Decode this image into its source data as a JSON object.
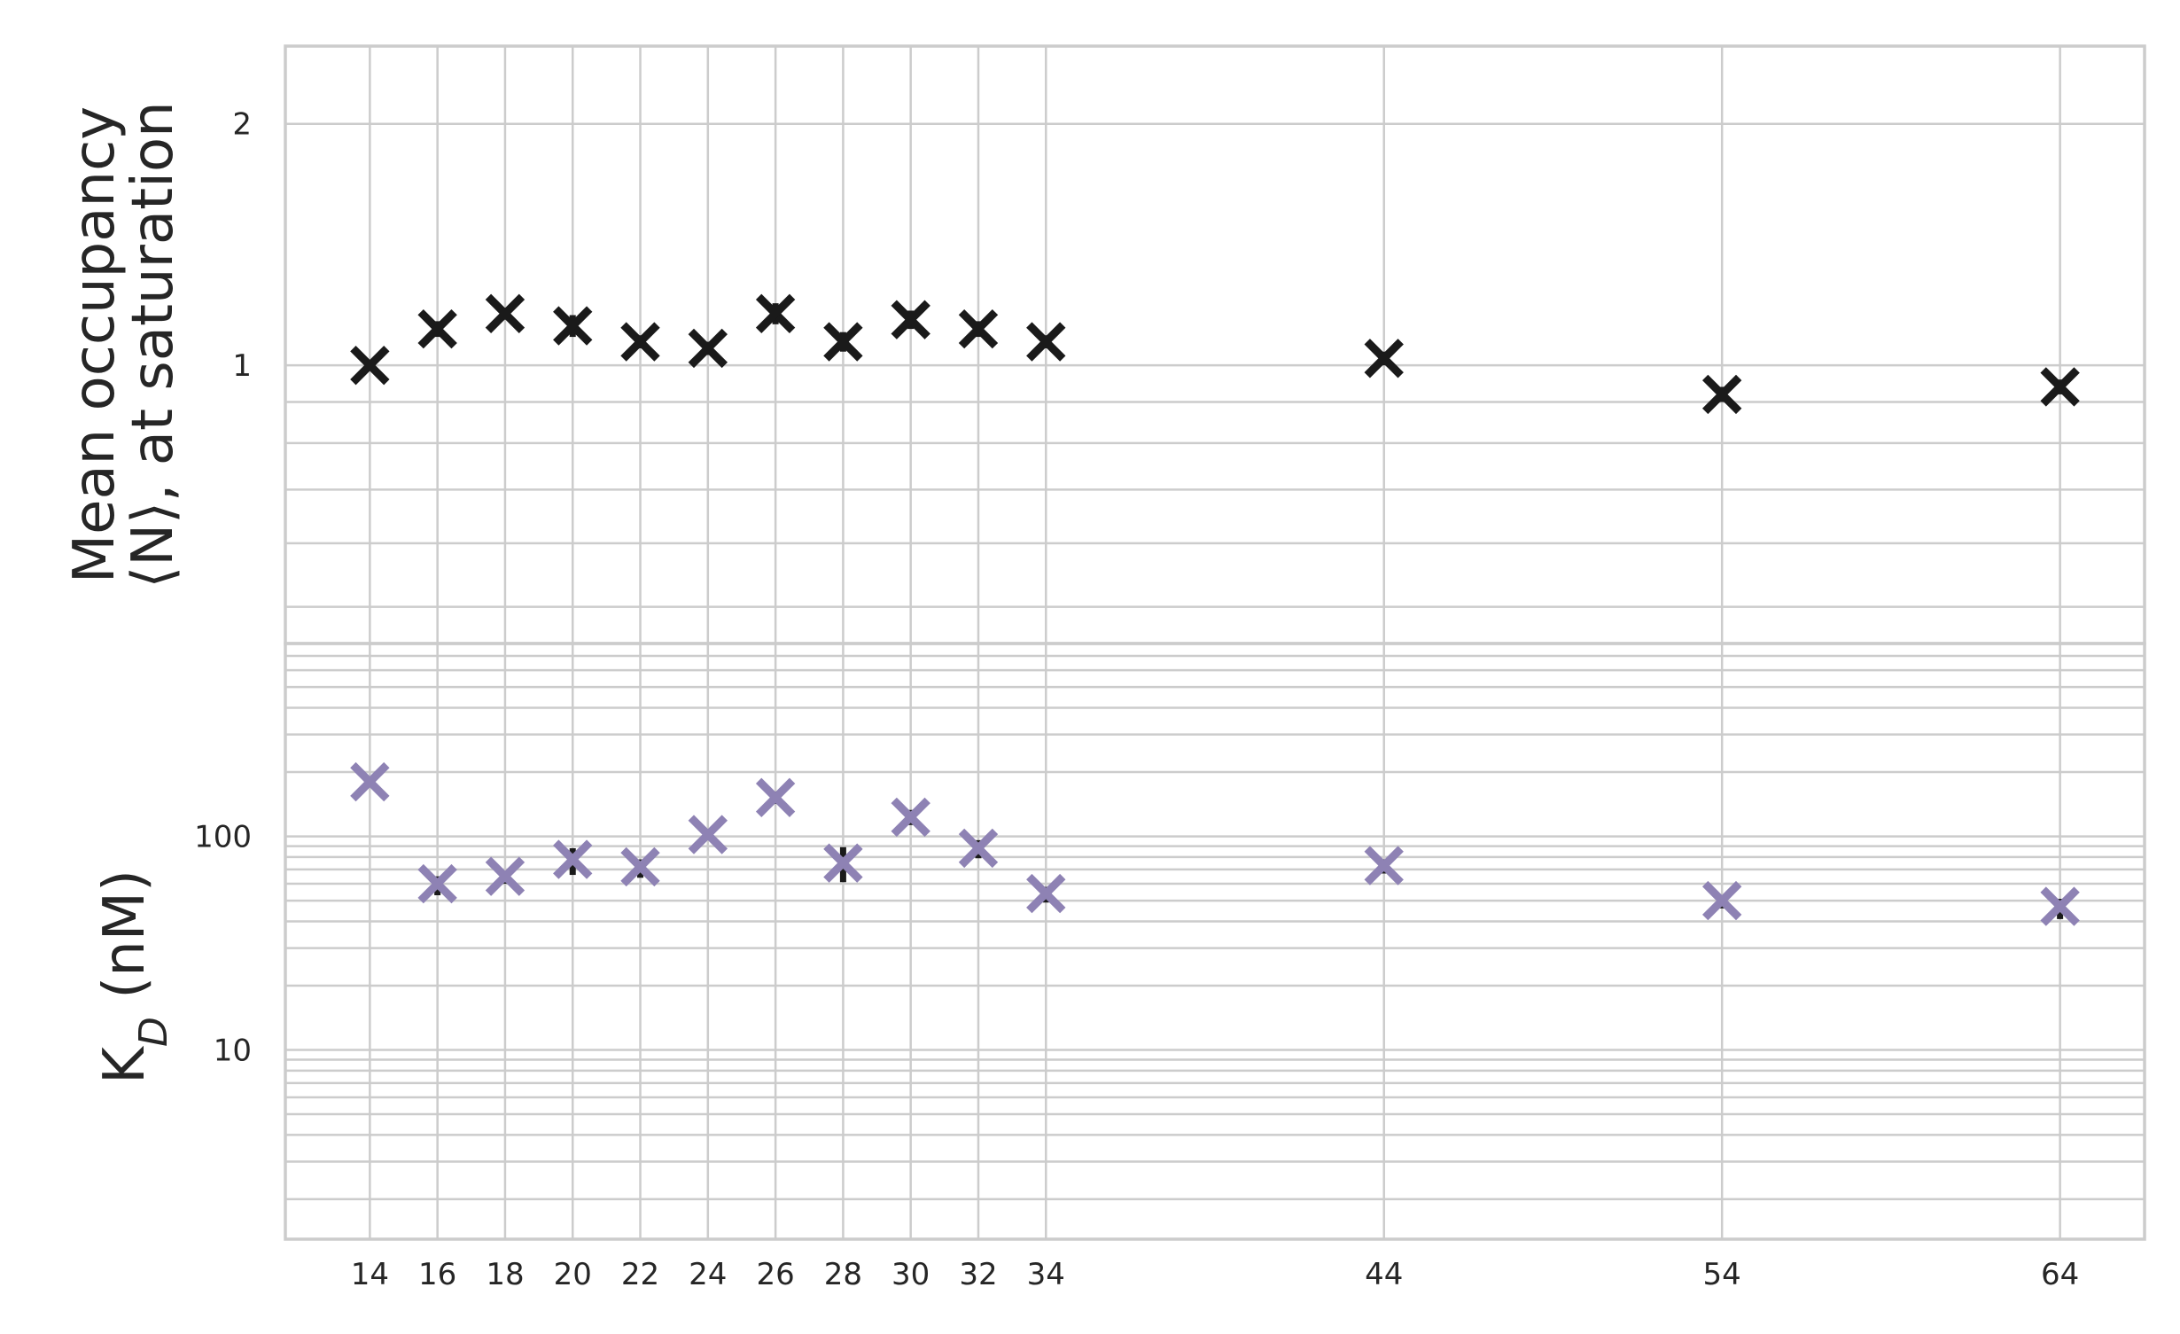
{
  "chart_data": [
    {
      "type": "scatter",
      "panel": "top",
      "ylabel_lines": [
        "Mean occupancy",
        "⟨N⟩, at saturation"
      ],
      "yscale": "log",
      "ylim": [
        0.45,
        2.5
      ],
      "yticks": [
        1,
        2
      ],
      "ytick_labels": [
        "1",
        "2"
      ],
      "grid": true,
      "marker": "x",
      "color": "#1a1a1a",
      "x": [
        14,
        16,
        18,
        20,
        22,
        24,
        26,
        28,
        30,
        32,
        34,
        44,
        54,
        64
      ],
      "y": [
        1.0,
        1.11,
        1.16,
        1.12,
        1.07,
        1.05,
        1.16,
        1.07,
        1.14,
        1.11,
        1.07,
        1.02,
        0.92,
        0.94
      ],
      "yerr": [
        0.015,
        0.025,
        0.02,
        0.035,
        0.02,
        0.02,
        0.035,
        0.03,
        0.03,
        0.025,
        0.02,
        0.02,
        0.02,
        0.02
      ]
    },
    {
      "type": "scatter",
      "panel": "bottom",
      "ylabel": "K",
      "ylabel_subscript": "D",
      "ylabel_suffix": " (nM)",
      "yscale": "log",
      "ylim": [
        1.3,
        800
      ],
      "yticks": [
        10,
        100
      ],
      "ytick_labels": [
        "10",
        "100"
      ],
      "grid": true,
      "marker": "x",
      "color": "#8e82b4",
      "errorbar_color": "#1a1a1a",
      "x": [
        14,
        16,
        18,
        20,
        22,
        24,
        26,
        28,
        30,
        32,
        34,
        44,
        54,
        64
      ],
      "y": [
        180,
        60,
        65,
        78,
        72,
        102,
        152,
        75,
        123,
        88,
        54,
        73,
        50,
        47
      ],
      "yerr_low": [
        8,
        7,
        5,
        12,
        8,
        6,
        10,
        14,
        10,
        9,
        5,
        6,
        4,
        6
      ],
      "yerr_high": [
        8,
        5,
        4,
        10,
        6,
        6,
        10,
        14,
        10,
        8,
        4,
        5,
        3,
        4
      ]
    }
  ],
  "x_axis": {
    "xlim": [
      11.5,
      66.5
    ],
    "ticks": [
      14,
      16,
      18,
      20,
      22,
      24,
      26,
      28,
      30,
      32,
      34,
      44,
      54,
      64
    ],
    "tick_labels": [
      "14",
      "16",
      "18",
      "20",
      "22",
      "24",
      "26",
      "28",
      "30",
      "32",
      "34",
      "44",
      "54",
      "64"
    ]
  }
}
